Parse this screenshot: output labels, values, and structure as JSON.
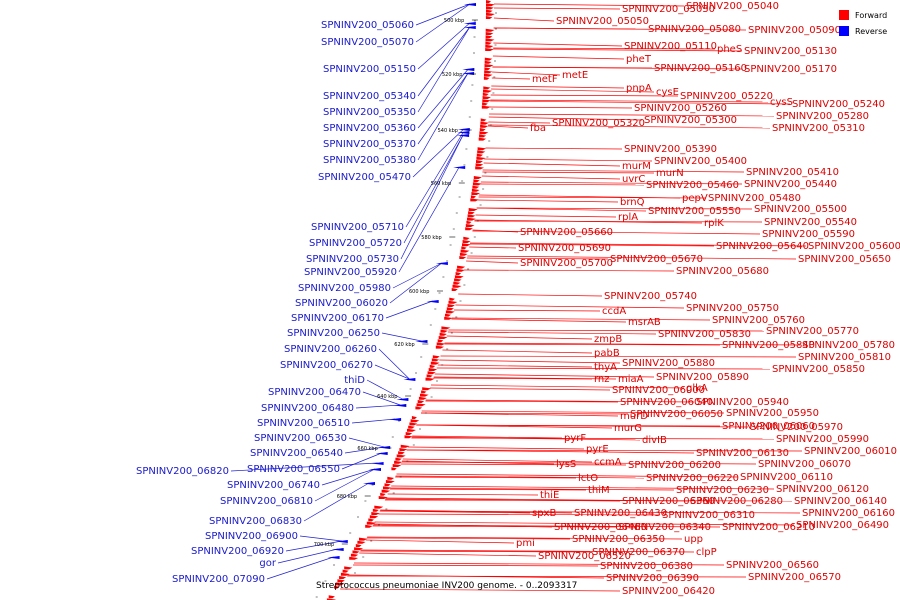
{
  "caption": "Streptococcus pneumoniae INV200 genome. - 0..2093317",
  "legend": {
    "forward": "Forward",
    "reverse": "Reverse",
    "forward_color": "#ff0000",
    "reverse_color": "#0000ff"
  },
  "kbp_ticks": [
    "500 kbp",
    "520 kbp",
    "540 kbp",
    "560 kbp",
    "580 kbp",
    "600 kbp",
    "620 kbp",
    "640 kbp",
    "660 kbp",
    "680 kbp",
    "700 kbp"
  ],
  "reverse_labels": [
    "SPNINV200_05060",
    "SPNINV200_05070",
    "SPNINV200_05150",
    "SPNINV200_05340",
    "SPNINV200_05350",
    "SPNINV200_05360",
    "SPNINV200_05370",
    "SPNINV200_05380",
    "SPNINV200_05470",
    "SPNINV200_05710",
    "SPNINV200_05720",
    "SPNINV200_05730",
    "SPNINV200_05920",
    "SPNINV200_05980",
    "SPNINV200_06020",
    "SPNINV200_06170",
    "SPNINV200_06250",
    "SPNINV200_06260",
    "SPNINV200_06270",
    "thiD",
    "SPNINV200_06470",
    "SPNINV200_06480",
    "SPNINV200_06510",
    "SPNINV200_06530",
    "SPNINV200_06540",
    "SPNINV200_06550",
    "SPNINV200_06820",
    "SPNINV200_06740",
    "SPNINV200_06810",
    "SPNINV200_06830",
    "SPNINV200_06900",
    "SPNINV200_06920",
    "gor",
    "SPNINV200_07090"
  ],
  "forward_labels": [
    "SPNINV200_05030",
    "SPNINV200_05040",
    "SPNINV200_05050",
    "SPNINV200_05080",
    "SPNINV200_05090",
    "SPNINV200_05110",
    "pheS",
    "SPNINV200_05130",
    "pheT",
    "SPNINV200_05160",
    "SPNINV200_05170",
    "metE",
    "metF",
    "pnpA",
    "cysE",
    "SPNINV200_05220",
    "cysS",
    "SPNINV200_05240",
    "SPNINV200_05260",
    "SPNINV200_05280",
    "SPNINV200_05300",
    "SPNINV200_05320",
    "fba",
    "SPNINV200_05310",
    "SPNINV200_05390",
    "SPNINV200_05400",
    "murM",
    "murN",
    "SPNINV200_05410",
    "uvrC",
    "SPNINV200_05460",
    "SPNINV200_05440",
    "pepV",
    "SPNINV200_05480",
    "brnQ",
    "SPNINV200_05550",
    "SPNINV200_05500",
    "rplA",
    "rplK",
    "SPNINV200_05540",
    "SPNINV200_05660",
    "SPNINV200_05590",
    "SPNINV200_05690",
    "SPNINV200_05640",
    "SPNINV200_05600",
    "SPNINV200_05670",
    "SPNINV200_05700",
    "SPNINV200_05650",
    "SPNINV200_05680",
    "SPNINV200_05740",
    "SPNINV200_05750",
    "ccdA",
    "SPNINV200_05760",
    "msrAB",
    "SPNINV200_05770",
    "SPNINV200_05830",
    "zmpB",
    "SPNINV200_05840",
    "SPNINV200_05780",
    "pabB",
    "SPNINV200_05810",
    "thyA",
    "SPNINV200_05880",
    "rnz",
    "miaA",
    "SPNINV200_05890",
    "SPNINV200_05850",
    "SPNINV200_06000",
    "glkA",
    "SPNINV200_06040",
    "SPNINV200_05940",
    "murD",
    "SPNINV200_06050",
    "SPNINV200_05950",
    "murG",
    "SPNINV200_06060",
    "SPNINV200_05970",
    "divIB",
    "SPNINV200_05990",
    "pyrF",
    "SPNINV200_06130",
    "SPNINV200_06010",
    "pyrE",
    "ccmA",
    "SPNINV200_06200",
    "SPNINV200_06070",
    "lysS",
    "lctO",
    "SPNINV200_06220",
    "SPNINV200_06110",
    "thiM",
    "SPNINV200_06230",
    "SPNINV200_06120",
    "thiE",
    "SPNINV200_06360",
    "SPNINV200_06280",
    "SPNINV200_06140",
    "spxB",
    "SPNINV200_06430",
    "SPNINV200_06310",
    "SPNINV200_06160",
    "SPNINV200_06460",
    "SPNINV200_06340",
    "SPNINV200_06210",
    "SPNINV200_06490",
    "SPNINV200_06350",
    "upp",
    "pmi",
    "SPNINV200_06370",
    "clpP",
    "SPNINV200_06520",
    "SPNINV200_06380",
    "SPNINV200_06560",
    "SPNINV200_06390",
    "SPNINV200_06570",
    "SPNINV200_06420"
  ]
}
